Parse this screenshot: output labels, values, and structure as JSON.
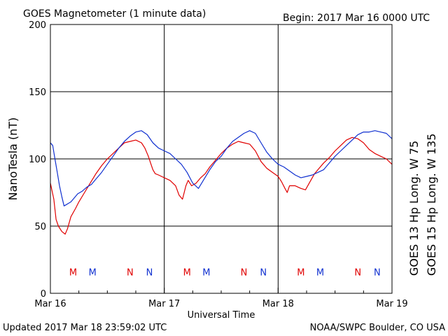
{
  "header": {
    "title": "GOES Magnetometer (1 minute data)",
    "begin": "Begin:  2017 Mar 16 0000 UTC"
  },
  "footer": {
    "updated": "Updated 2017 Mar 18 23:59:02 UTC",
    "credit": "NOAA/SWPC Boulder, CO USA"
  },
  "colors": {
    "red_series": "#e00000",
    "blue_series": "#1030d0",
    "axis": "#000000"
  },
  "chart_data": {
    "type": "line",
    "ylabel": "NanoTesla (nT)",
    "xlabel": "Universal Time",
    "ylim": [
      0,
      200
    ],
    "xlim_days": [
      0,
      3
    ],
    "yticks": [
      0,
      50,
      100,
      150,
      200
    ],
    "xtick_labels": [
      "Mar 16",
      "Mar 17",
      "Mar 18",
      "Mar 19"
    ],
    "grid": true,
    "series": [
      {
        "name": "GOES 13 Hp  Long. W 75",
        "color": "#e00000",
        "points": [
          [
            0.0,
            82
          ],
          [
            0.03,
            70
          ],
          [
            0.05,
            55
          ],
          [
            0.07,
            50
          ],
          [
            0.1,
            46
          ],
          [
            0.13,
            44
          ],
          [
            0.15,
            48
          ],
          [
            0.18,
            57
          ],
          [
            0.22,
            63
          ],
          [
            0.25,
            68
          ],
          [
            0.3,
            75
          ],
          [
            0.35,
            82
          ],
          [
            0.4,
            89
          ],
          [
            0.45,
            95
          ],
          [
            0.5,
            100
          ],
          [
            0.55,
            104
          ],
          [
            0.6,
            108
          ],
          [
            0.65,
            112
          ],
          [
            0.7,
            113
          ],
          [
            0.75,
            114
          ],
          [
            0.8,
            112
          ],
          [
            0.83,
            108
          ],
          [
            0.86,
            102
          ],
          [
            0.88,
            97
          ],
          [
            0.9,
            92
          ],
          [
            0.92,
            89
          ],
          [
            0.95,
            88
          ],
          [
            1.0,
            86
          ],
          [
            1.05,
            84
          ],
          [
            1.1,
            80
          ],
          [
            1.13,
            73
          ],
          [
            1.16,
            70
          ],
          [
            1.19,
            80
          ],
          [
            1.21,
            84
          ],
          [
            1.24,
            80
          ],
          [
            1.28,
            82
          ],
          [
            1.32,
            86
          ],
          [
            1.36,
            89
          ],
          [
            1.4,
            94
          ],
          [
            1.45,
            99
          ],
          [
            1.5,
            104
          ],
          [
            1.55,
            108
          ],
          [
            1.6,
            111
          ],
          [
            1.65,
            113
          ],
          [
            1.7,
            112
          ],
          [
            1.75,
            111
          ],
          [
            1.8,
            106
          ],
          [
            1.85,
            98
          ],
          [
            1.9,
            93
          ],
          [
            1.95,
            90
          ],
          [
            2.0,
            87
          ],
          [
            2.03,
            83
          ],
          [
            2.06,
            78
          ],
          [
            2.08,
            75
          ],
          [
            2.1,
            80
          ],
          [
            2.15,
            80
          ],
          [
            2.2,
            78
          ],
          [
            2.24,
            77
          ],
          [
            2.28,
            83
          ],
          [
            2.32,
            89
          ],
          [
            2.36,
            93
          ],
          [
            2.4,
            97
          ],
          [
            2.45,
            101
          ],
          [
            2.5,
            106
          ],
          [
            2.55,
            110
          ],
          [
            2.6,
            114
          ],
          [
            2.65,
            116
          ],
          [
            2.7,
            115
          ],
          [
            2.75,
            112
          ],
          [
            2.8,
            107
          ],
          [
            2.85,
            104
          ],
          [
            2.9,
            102
          ],
          [
            2.95,
            100
          ],
          [
            3.0,
            96
          ]
        ]
      },
      {
        "name": "GOES 15 Hp  Long. W 135",
        "color": "#1030d0",
        "points": [
          [
            0.0,
            112
          ],
          [
            0.02,
            110
          ],
          [
            0.04,
            100
          ],
          [
            0.06,
            90
          ],
          [
            0.08,
            80
          ],
          [
            0.1,
            72
          ],
          [
            0.12,
            65
          ],
          [
            0.14,
            66
          ],
          [
            0.16,
            67
          ],
          [
            0.18,
            68
          ],
          [
            0.2,
            70
          ],
          [
            0.24,
            74
          ],
          [
            0.28,
            76
          ],
          [
            0.32,
            79
          ],
          [
            0.36,
            81
          ],
          [
            0.4,
            85
          ],
          [
            0.45,
            90
          ],
          [
            0.5,
            96
          ],
          [
            0.55,
            102
          ],
          [
            0.6,
            108
          ],
          [
            0.65,
            113
          ],
          [
            0.7,
            117
          ],
          [
            0.75,
            120
          ],
          [
            0.8,
            121
          ],
          [
            0.85,
            118
          ],
          [
            0.9,
            112
          ],
          [
            0.95,
            108
          ],
          [
            1.0,
            106
          ],
          [
            1.05,
            104
          ],
          [
            1.1,
            100
          ],
          [
            1.15,
            96
          ],
          [
            1.2,
            90
          ],
          [
            1.25,
            82
          ],
          [
            1.3,
            78
          ],
          [
            1.35,
            85
          ],
          [
            1.4,
            92
          ],
          [
            1.45,
            98
          ],
          [
            1.5,
            102
          ],
          [
            1.55,
            108
          ],
          [
            1.6,
            113
          ],
          [
            1.65,
            116
          ],
          [
            1.7,
            119
          ],
          [
            1.75,
            121
          ],
          [
            1.8,
            119
          ],
          [
            1.85,
            112
          ],
          [
            1.9,
            105
          ],
          [
            1.95,
            100
          ],
          [
            2.0,
            96
          ],
          [
            2.05,
            94
          ],
          [
            2.1,
            91
          ],
          [
            2.15,
            88
          ],
          [
            2.2,
            86
          ],
          [
            2.25,
            87
          ],
          [
            2.3,
            88
          ],
          [
            2.35,
            90
          ],
          [
            2.4,
            92
          ],
          [
            2.45,
            97
          ],
          [
            2.5,
            102
          ],
          [
            2.55,
            106
          ],
          [
            2.6,
            110
          ],
          [
            2.65,
            114
          ],
          [
            2.7,
            118
          ],
          [
            2.75,
            120
          ],
          [
            2.8,
            120
          ],
          [
            2.85,
            121
          ],
          [
            2.9,
            120
          ],
          [
            2.95,
            119
          ],
          [
            3.0,
            115
          ]
        ]
      }
    ],
    "markers": [
      {
        "label": "M",
        "series": 0,
        "x": 0.2
      },
      {
        "label": "M",
        "series": 1,
        "x": 0.37
      },
      {
        "label": "N",
        "series": 0,
        "x": 0.7
      },
      {
        "label": "N",
        "series": 1,
        "x": 0.87
      },
      {
        "label": "M",
        "series": 0,
        "x": 1.2
      },
      {
        "label": "M",
        "series": 1,
        "x": 1.37
      },
      {
        "label": "N",
        "series": 0,
        "x": 1.7
      },
      {
        "label": "N",
        "series": 1,
        "x": 1.87
      },
      {
        "label": "M",
        "series": 0,
        "x": 2.2
      },
      {
        "label": "M",
        "series": 1,
        "x": 2.37
      },
      {
        "label": "N",
        "series": 0,
        "x": 2.7
      },
      {
        "label": "N",
        "series": 1,
        "x": 2.87
      }
    ],
    "marker_level": 16
  }
}
